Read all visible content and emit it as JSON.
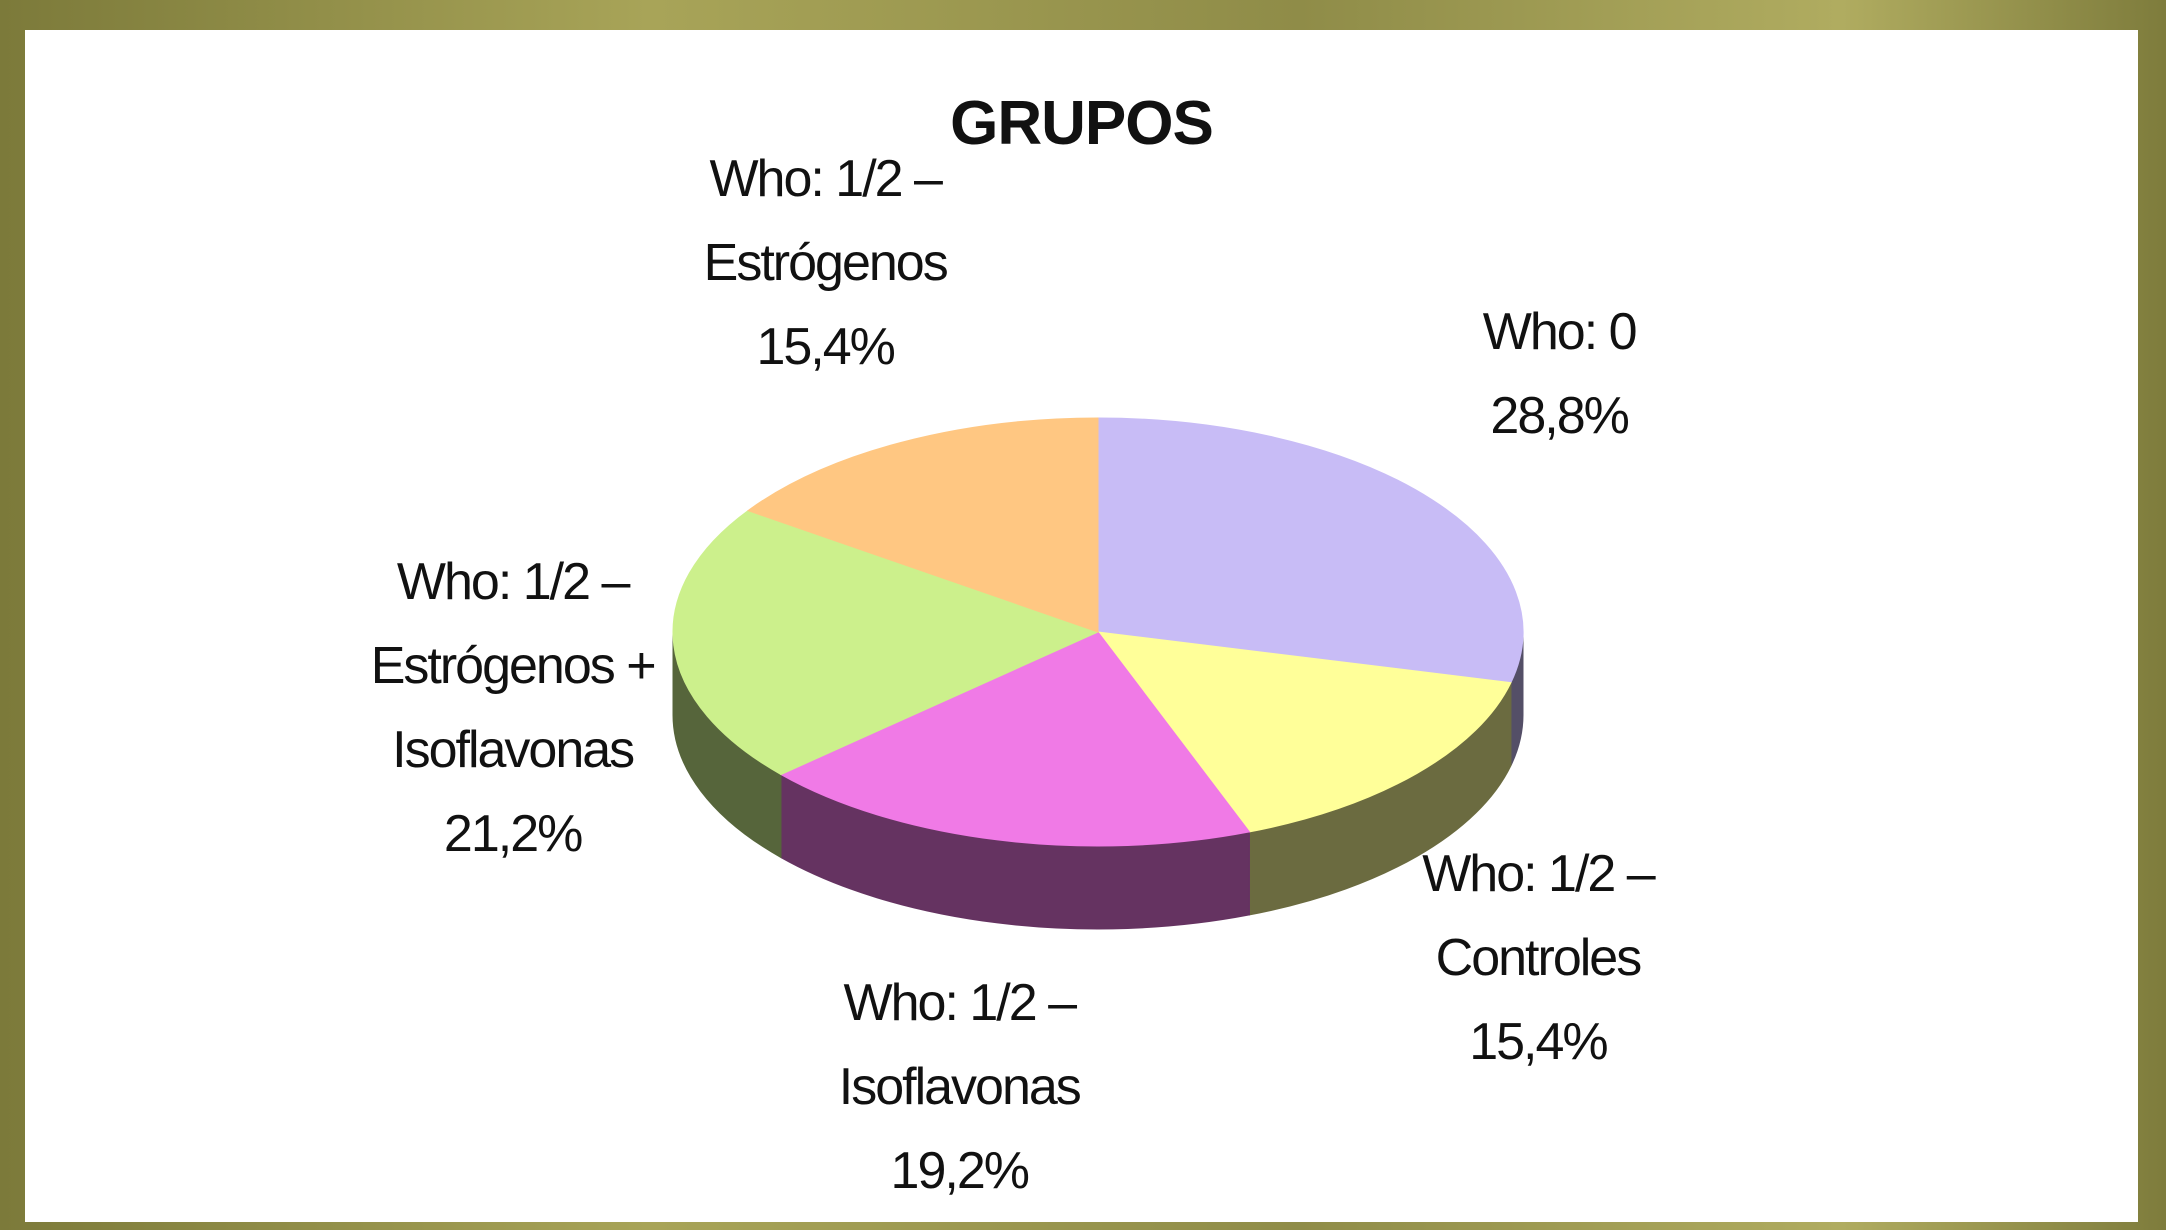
{
  "chart_data": {
    "type": "pie",
    "title": "GRUPOS",
    "categories": [
      "Who: 0",
      "Who: 1/2 – Controles",
      "Who: 1/2 – Isoflavonas",
      "Who: 1/2 – Estrógenos + Isoflavonas",
      "Who: 1/2 – Estrógenos"
    ],
    "values": [
      28.8,
      15.4,
      19.2,
      21.2,
      15.4
    ],
    "value_labels": [
      "28,8%",
      "15,4%",
      "19,2%",
      "21,2%",
      "15,4%"
    ],
    "colors": [
      "#c8bcf6",
      "#ffff99",
      "#f07ae6",
      "#ccf08c",
      "#ffc782"
    ]
  }
}
